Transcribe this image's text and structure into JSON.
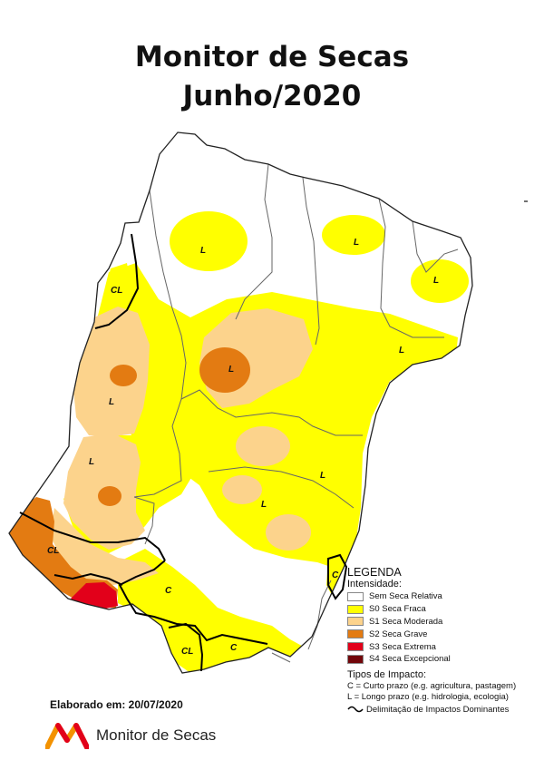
{
  "header": {
    "title_line1": "Monitor de Secas",
    "title_line2": "Junho/2020"
  },
  "map_labels": {
    "l1": "L",
    "l2": "L",
    "l3": "L",
    "l4": "CL",
    "l5": "L",
    "l6": "L",
    "l7": "L",
    "l8": "L",
    "l9": "L",
    "l10": "L",
    "l11": "CL",
    "l12": "C",
    "l13": "C",
    "l14": "CL",
    "l15": "C"
  },
  "legend": {
    "title": "LEGENDA",
    "intensity_label": "Intensidade:",
    "items": [
      {
        "label": "Sem Seca Relativa",
        "color": "#ffffff"
      },
      {
        "label": "S0 Seca Fraca",
        "color": "#ffff00"
      },
      {
        "label": "S1 Seca Moderada",
        "color": "#fcd38c"
      },
      {
        "label": "S2 Seca Grave",
        "color": "#e37b12"
      },
      {
        "label": "S3 Seca Extrema",
        "color": "#e2001a"
      },
      {
        "label": "S4 Seca Excepcional",
        "color": "#72060a"
      }
    ],
    "impact_title": "Tipos de Impacto:",
    "impact_c": "C = Curto prazo (e.g. agricultura, pastagem)",
    "impact_l": "L = Longo prazo (e.g. hidrologia, ecologia)",
    "delimitation": "Delimitação de Impactos Dominantes"
  },
  "footer": {
    "elaborated": "Elaborado em: 20/07/2020",
    "brand": "Monitor de Secas"
  }
}
